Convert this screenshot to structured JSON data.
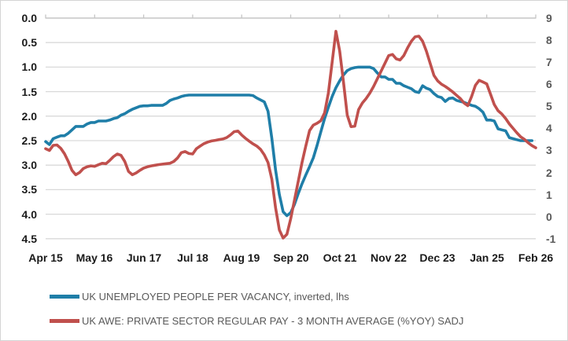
{
  "chart_data": {
    "type": "line",
    "title": "",
    "grid": true,
    "legend_position": "bottom-left",
    "x_axis": {
      "unit": "month",
      "start": "Apr 2015",
      "end": "Feb 2026",
      "months_total": 130,
      "label_interval_months": 13,
      "labels": [
        "Apr 15",
        "May 16",
        "Jun 17",
        "Jul 18",
        "Aug 19",
        "Sep 20",
        "Oct 21",
        "Nov 22",
        "Dec 23",
        "Jan 25",
        "Feb 26"
      ]
    },
    "y_left": {
      "min": 0.0,
      "max": 4.5,
      "inverted": true,
      "ticks": [
        "0.0",
        "0.5",
        "1.0",
        "1.5",
        "2.0",
        "2.5",
        "3.0",
        "3.5",
        "4.0",
        "4.5"
      ]
    },
    "y_right": {
      "min": -1,
      "max": 9,
      "ticks": [
        "9",
        "8",
        "7",
        "6",
        "5",
        "4",
        "3",
        "2",
        "1",
        "0",
        "-1"
      ]
    },
    "series": [
      {
        "name": "UK UNEMPLOYED PEOPLE PER VACANCY, inverted, lhs",
        "axis": "left",
        "color": "#1F7EA8",
        "start_month_index": 0,
        "values": [
          2.52,
          2.58,
          2.46,
          2.43,
          2.4,
          2.4,
          2.35,
          2.28,
          2.21,
          2.21,
          2.21,
          2.16,
          2.13,
          2.13,
          2.1,
          2.1,
          2.1,
          2.08,
          2.05,
          2.03,
          1.98,
          1.95,
          1.9,
          1.86,
          1.83,
          1.8,
          1.79,
          1.79,
          1.78,
          1.78,
          1.78,
          1.78,
          1.74,
          1.68,
          1.65,
          1.63,
          1.6,
          1.58,
          1.57,
          1.57,
          1.57,
          1.57,
          1.57,
          1.57,
          1.57,
          1.57,
          1.57,
          1.57,
          1.57,
          1.57,
          1.57,
          1.57,
          1.57,
          1.57,
          1.57,
          1.58,
          1.63,
          1.67,
          1.71,
          1.9,
          2.45,
          3.1,
          3.6,
          3.95,
          4.03,
          3.97,
          3.8,
          3.58,
          3.38,
          3.2,
          3.03,
          2.85,
          2.6,
          2.32,
          2.05,
          1.82,
          1.6,
          1.42,
          1.28,
          1.16,
          1.07,
          1.03,
          1.01,
          1.0,
          1.0,
          1.0,
          1.0,
          1.03,
          1.12,
          1.2,
          1.2,
          1.25,
          1.25,
          1.33,
          1.33,
          1.38,
          1.41,
          1.44,
          1.5,
          1.52,
          1.38,
          1.43,
          1.46,
          1.54,
          1.6,
          1.62,
          1.7,
          1.64,
          1.63,
          1.68,
          1.7,
          1.72,
          1.75,
          1.78,
          1.8,
          1.85,
          1.92,
          2.08,
          2.08,
          2.1,
          2.26,
          2.28,
          2.3,
          2.44,
          2.46,
          2.48,
          2.5,
          2.5,
          2.5,
          2.5
        ]
      },
      {
        "name": "UK AWE: PRIVATE SECTOR REGULAR PAY - 3 MONTH AVERAGE (%YOY) SADJ",
        "axis": "right",
        "color": "#C0504D",
        "start_month_index": 0,
        "values": [
          3.08,
          3.0,
          3.23,
          3.25,
          3.1,
          2.85,
          2.5,
          2.1,
          1.9,
          2.0,
          2.18,
          2.26,
          2.3,
          2.28,
          2.35,
          2.42,
          2.4,
          2.55,
          2.72,
          2.84,
          2.78,
          2.5,
          2.05,
          1.9,
          1.98,
          2.1,
          2.2,
          2.26,
          2.3,
          2.33,
          2.36,
          2.38,
          2.4,
          2.42,
          2.5,
          2.66,
          2.9,
          2.95,
          2.86,
          2.84,
          3.08,
          3.2,
          3.31,
          3.38,
          3.43,
          3.46,
          3.49,
          3.52,
          3.58,
          3.7,
          3.85,
          3.88,
          3.7,
          3.55,
          3.42,
          3.3,
          3.2,
          3.05,
          2.8,
          2.45,
          1.7,
          0.4,
          -0.6,
          -0.97,
          -0.8,
          -0.1,
          0.75,
          1.6,
          2.45,
          3.2,
          3.9,
          4.15,
          4.23,
          4.35,
          4.7,
          5.6,
          7.0,
          8.4,
          7.5,
          6.1,
          4.6,
          4.08,
          4.1,
          4.85,
          5.15,
          5.35,
          5.6,
          5.9,
          6.25,
          6.6,
          6.95,
          7.3,
          7.35,
          7.15,
          7.1,
          7.3,
          7.65,
          7.95,
          8.15,
          8.18,
          7.95,
          7.5,
          6.95,
          6.4,
          6.15,
          6.0,
          5.9,
          5.78,
          5.65,
          5.5,
          5.35,
          5.15,
          5.03,
          5.45,
          5.95,
          6.18,
          6.1,
          6.02,
          5.55,
          5.08,
          4.8,
          4.65,
          4.45,
          4.2,
          4.0,
          3.8,
          3.62,
          3.5,
          3.35,
          3.22,
          3.12
        ]
      }
    ],
    "plot_style": {
      "gridline_color": "#d9d9d9",
      "axis_line_color": "#c6c6c6",
      "line_width": 3.6
    }
  },
  "legend": {
    "items": [
      {
        "label": "UK UNEMPLOYED PEOPLE PER VACANCY, inverted, lhs",
        "color": "#1F7EA8"
      },
      {
        "label": "UK AWE: PRIVATE SECTOR REGULAR PAY - 3 MONTH AVERAGE (%YOY) SADJ",
        "color": "#C0504D"
      }
    ]
  }
}
